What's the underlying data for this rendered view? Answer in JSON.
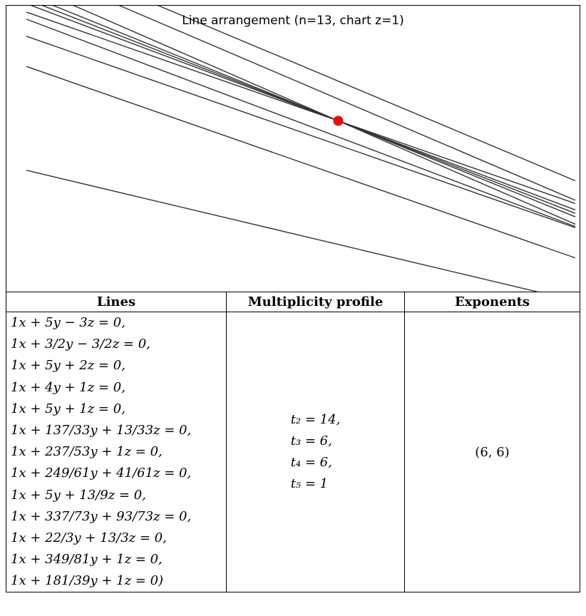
{
  "title": "Line arrangement (n=13, chart z=1)",
  "table": {
    "headers": [
      "Lines",
      "Multiplicity profile",
      "Exponents"
    ],
    "lines": [
      "1x + 5y − 3z = 0,",
      "1x + 3/2y − 3/2z = 0,",
      "1x + 5y + 2z = 0,",
      "1x + 4y + 1z = 0,",
      "1x + 5y + 1z = 0,",
      "1x + 137/33y + 13/33z = 0,",
      "1x + 237/53y + 1z = 0,",
      "1x + 249/61y + 41/61z = 0,",
      "1x + 5y + 13/9z = 0,",
      "1x + 337/73y + 93/73z = 0,",
      "1x + 22/3y + 13/3z = 0,",
      "1x + 349/81y + 1z = 0,",
      "1x + 181/39y + 1z = 0)"
    ],
    "multiplicity": [
      "t₂ = 14,",
      "t₃ = 6,",
      "t₄ = 6,",
      "t₅ = 1"
    ],
    "exponents": "(6, 6)"
  },
  "chart_data": {
    "type": "line-arrangement",
    "title": "Line arrangement (n=13, chart z=1)",
    "grid": false,
    "lines": [
      {
        "a": 1,
        "b": 5,
        "c": -3
      },
      {
        "a": 1,
        "b": 1.5,
        "c": -1.5
      },
      {
        "a": 1,
        "b": 5,
        "c": 2
      },
      {
        "a": 1,
        "b": 4,
        "c": 1
      },
      {
        "a": 1,
        "b": 5,
        "c": 1
      },
      {
        "a": 1,
        "b": 4.1515,
        "c": 0.3939
      },
      {
        "a": 1,
        "b": 4.4717,
        "c": 1
      },
      {
        "a": 1,
        "b": 4.082,
        "c": 0.6721
      },
      {
        "a": 1,
        "b": 5,
        "c": 1.4444
      },
      {
        "a": 1,
        "b": 4.6164,
        "c": 1.274
      },
      {
        "a": 1,
        "b": 7.3333,
        "c": 4.3333
      },
      {
        "a": 1,
        "b": 4.3086,
        "c": 1
      },
      {
        "a": 1,
        "b": 4.641,
        "c": 1
      }
    ],
    "point_color": "#ff0000",
    "line_color": "#333333"
  }
}
